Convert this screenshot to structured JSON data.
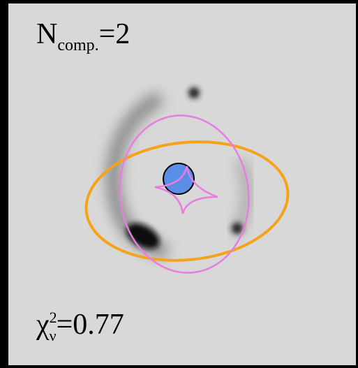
{
  "top_label": {
    "symbol": "N",
    "subscript": "comp.",
    "text": "=2"
  },
  "bottom_label": {
    "symbol": "χ",
    "superscript": "2",
    "subscript": "ν",
    "text": "=0.77"
  }
}
